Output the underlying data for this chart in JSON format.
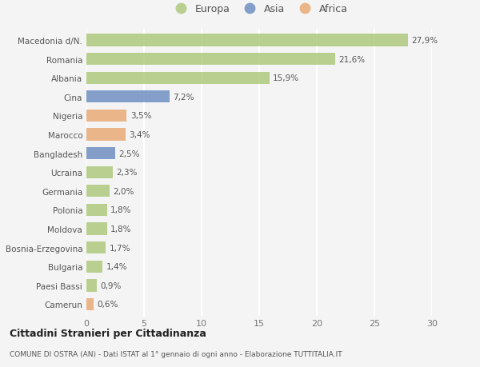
{
  "categories": [
    "Macedonia d/N.",
    "Romania",
    "Albania",
    "Cina",
    "Nigeria",
    "Marocco",
    "Bangladesh",
    "Ucraina",
    "Germania",
    "Polonia",
    "Moldova",
    "Bosnia-Erzegovina",
    "Bulgaria",
    "Paesi Bassi",
    "Camerun"
  ],
  "values": [
    27.9,
    21.6,
    15.9,
    7.2,
    3.5,
    3.4,
    2.5,
    2.3,
    2.0,
    1.8,
    1.8,
    1.7,
    1.4,
    0.9,
    0.6
  ],
  "labels": [
    "27,9%",
    "21,6%",
    "15,9%",
    "7,2%",
    "3,5%",
    "3,4%",
    "2,5%",
    "2,3%",
    "2,0%",
    "1,8%",
    "1,8%",
    "1,7%",
    "1,4%",
    "0,9%",
    "0,6%"
  ],
  "colors": [
    "#afc97e",
    "#afc97e",
    "#afc97e",
    "#6e8fc2",
    "#e8aa76",
    "#e8aa76",
    "#6e8fc2",
    "#afc97e",
    "#afc97e",
    "#afc97e",
    "#afc97e",
    "#afc97e",
    "#afc97e",
    "#afc97e",
    "#e8aa76"
  ],
  "legend": [
    {
      "label": "Europa",
      "color": "#afc97e"
    },
    {
      "label": "Asia",
      "color": "#6e8fc2"
    },
    {
      "label": "Africa",
      "color": "#e8aa76"
    }
  ],
  "xlim": [
    0,
    30
  ],
  "xticks": [
    0,
    5,
    10,
    15,
    20,
    25,
    30
  ],
  "title1": "Cittadini Stranieri per Cittadinanza",
  "title2": "COMUNE DI OSTRA (AN) - Dati ISTAT al 1° gennaio di ogni anno - Elaborazione TUTTITALIA.IT",
  "background_color": "#f4f4f4",
  "grid_color": "#ffffff",
  "bar_height": 0.65,
  "bar_alpha": 0.85
}
